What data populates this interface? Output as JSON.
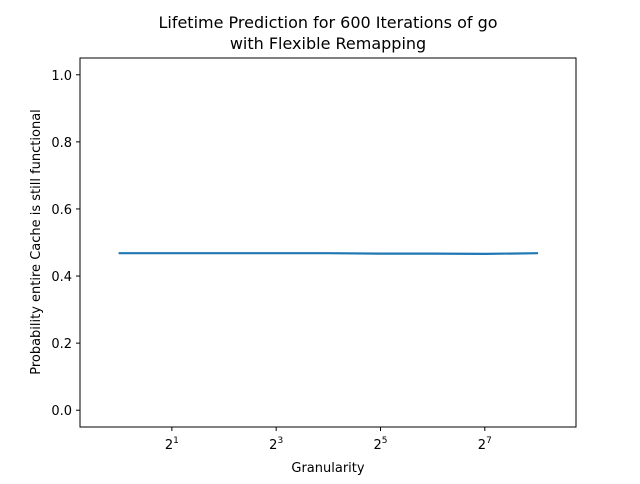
{
  "chart_data": {
    "type": "line",
    "title_lines": [
      "Lifetime Prediction for 600 Iterations of go",
      "with Flexible Remapping"
    ],
    "xlabel": "Granularity",
    "ylabel": "Probability entire Cache is still functional",
    "x_scale": "log2",
    "x": [
      1,
      2,
      4,
      8,
      16,
      32,
      64,
      128,
      256
    ],
    "xlim": [
      0.59,
      430
    ],
    "ylim": [
      -0.05,
      1.05
    ],
    "x_ticks": [
      {
        "value": 2,
        "base": "2",
        "exp": "1"
      },
      {
        "value": 8,
        "base": "2",
        "exp": "3"
      },
      {
        "value": 32,
        "base": "2",
        "exp": "5"
      },
      {
        "value": 128,
        "base": "2",
        "exp": "7"
      }
    ],
    "y_ticks": [
      {
        "value": 0.0,
        "label": "0.0"
      },
      {
        "value": 0.2,
        "label": "0.2"
      },
      {
        "value": 0.4,
        "label": "0.4"
      },
      {
        "value": 0.6,
        "label": "0.6"
      },
      {
        "value": 0.8,
        "label": "0.8"
      },
      {
        "value": 1.0,
        "label": "1.0"
      }
    ],
    "grid": false,
    "legend": "none",
    "series": [
      {
        "color": "#1f77b4",
        "values": [
          0.468,
          0.468,
          0.468,
          0.468,
          0.468,
          0.467,
          0.467,
          0.466,
          0.468
        ]
      }
    ]
  }
}
